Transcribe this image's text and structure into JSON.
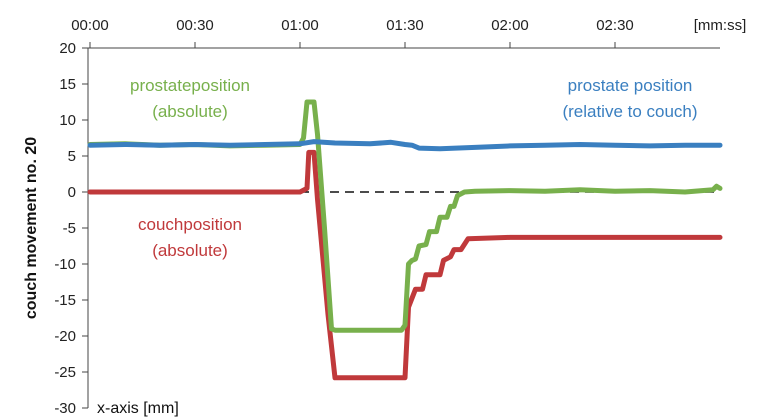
{
  "chart_data": {
    "type": "line",
    "x_unit_label": "[mm:ss]",
    "x_tick_labels": [
      "00:00",
      "00:30",
      "01:00",
      "01:30",
      "02:00",
      "02:30"
    ],
    "x_tick_values_s": [
      0,
      30,
      60,
      90,
      120,
      150
    ],
    "xlim_s": [
      0,
      180
    ],
    "ylim": [
      -30,
      20
    ],
    "y_ticks": [
      20,
      15,
      10,
      5,
      0,
      -5,
      -10,
      -15,
      -20,
      -25,
      -30
    ],
    "ylabel": "couch movement no. 20",
    "xlabel": "x-axis [mm]",
    "grid": false,
    "zero_line": "dashed",
    "series": [
      {
        "key": "couch",
        "color": "#c0393b",
        "annotation": [
          "couchposition",
          "(absolute)"
        ],
        "points": [
          [
            0,
            0
          ],
          [
            60,
            0
          ],
          [
            62,
            0.5
          ],
          [
            62.5,
            5.5
          ],
          [
            64,
            5.5
          ],
          [
            65,
            -1
          ],
          [
            68,
            -17
          ],
          [
            70,
            -25.8
          ],
          [
            90,
            -25.8
          ],
          [
            91,
            -16
          ],
          [
            93,
            -13.5
          ],
          [
            95,
            -13.5
          ],
          [
            96,
            -11.5
          ],
          [
            100,
            -11.5
          ],
          [
            101,
            -9.5
          ],
          [
            103,
            -9
          ],
          [
            104,
            -8
          ],
          [
            106,
            -8
          ],
          [
            108,
            -6.5
          ],
          [
            120,
            -6.3
          ],
          [
            180,
            -6.3
          ]
        ]
      },
      {
        "key": "prostate_abs",
        "color": "#78b04c",
        "annotation": [
          "prostateposition",
          "(absolute)"
        ],
        "points": [
          [
            0,
            6.6
          ],
          [
            10,
            6.7
          ],
          [
            20,
            6.5
          ],
          [
            30,
            6.6
          ],
          [
            40,
            6.4
          ],
          [
            50,
            6.5
          ],
          [
            60,
            6.6
          ],
          [
            61,
            7.5
          ],
          [
            62,
            12.5
          ],
          [
            64,
            12.5
          ],
          [
            65,
            8
          ],
          [
            67,
            -5
          ],
          [
            69,
            -19
          ],
          [
            70,
            -19.2
          ],
          [
            89,
            -19.2
          ],
          [
            90,
            -18.5
          ],
          [
            91,
            -10
          ],
          [
            92,
            -9.5
          ],
          [
            93,
            -9.3
          ],
          [
            94,
            -7.5
          ],
          [
            96,
            -7.3
          ],
          [
            97,
            -5.5
          ],
          [
            99,
            -5.5
          ],
          [
            100,
            -3.5
          ],
          [
            102,
            -3.5
          ],
          [
            103,
            -2
          ],
          [
            104,
            -2
          ],
          [
            105,
            -0.5
          ],
          [
            107,
            0
          ],
          [
            110,
            0.1
          ],
          [
            120,
            0.2
          ],
          [
            130,
            0.1
          ],
          [
            140,
            0.3
          ],
          [
            150,
            0.1
          ],
          [
            160,
            0.2
          ],
          [
            170,
            0
          ],
          [
            178,
            0.3
          ],
          [
            179,
            0.8
          ],
          [
            180,
            0.5
          ]
        ]
      },
      {
        "key": "prostate_rel",
        "color": "#3a7fc0",
        "annotation": [
          "prostate position",
          "(relative to couch)"
        ],
        "points": [
          [
            0,
            6.5
          ],
          [
            10,
            6.6
          ],
          [
            20,
            6.5
          ],
          [
            30,
            6.6
          ],
          [
            40,
            6.5
          ],
          [
            50,
            6.6
          ],
          [
            60,
            6.7
          ],
          [
            64,
            7
          ],
          [
            70,
            6.8
          ],
          [
            80,
            6.7
          ],
          [
            86,
            6.9
          ],
          [
            90,
            6.6
          ],
          [
            92,
            6.5
          ],
          [
            94,
            6.1
          ],
          [
            100,
            6.0
          ],
          [
            110,
            6.2
          ],
          [
            120,
            6.4
          ],
          [
            130,
            6.5
          ],
          [
            140,
            6.6
          ],
          [
            150,
            6.5
          ],
          [
            160,
            6.4
          ],
          [
            170,
            6.5
          ],
          [
            180,
            6.5
          ]
        ]
      }
    ]
  }
}
